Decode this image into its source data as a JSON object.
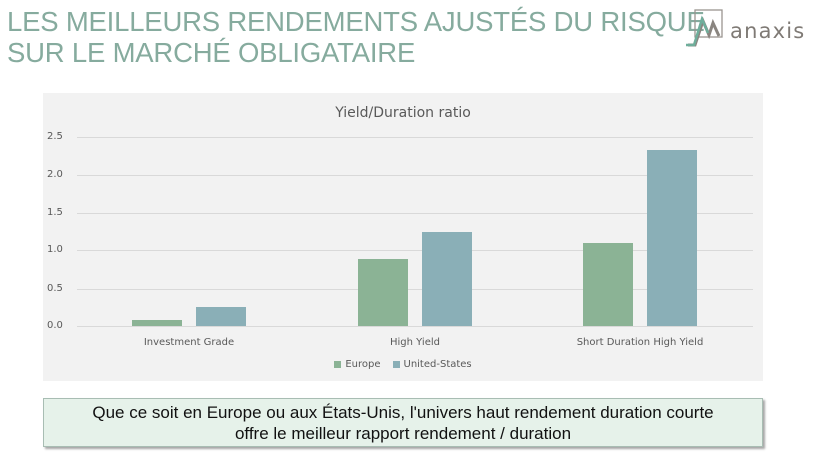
{
  "header": {
    "title_line1": "LES MEILLEURS RENDEMENTS AJUSTÉS DU RISQUE",
    "title_line2": "SUR LE MARCHÉ OBLIGATAIRE"
  },
  "logo": {
    "icon": "anaxis-mountain-logo-icon",
    "text": "anaxis"
  },
  "colors": {
    "title": "#86ab9e",
    "europe": "#8bb395",
    "united_states": "#8aafb7",
    "chart_background": "#f2f2f2",
    "callout_background": "#e6f2ea"
  },
  "chart_data": {
    "type": "bar",
    "title": "Yield/Duration ratio",
    "categories": [
      "Investment Grade",
      "High Yield",
      "Short Duration High Yield"
    ],
    "series": [
      {
        "name": "Europe",
        "color": "#8bb395",
        "values": [
          0.08,
          0.88,
          1.1
        ]
      },
      {
        "name": "United-States",
        "color": "#8aafb7",
        "values": [
          0.25,
          1.24,
          2.33
        ]
      }
    ],
    "xlabel": "",
    "ylabel": "",
    "ylim": [
      0,
      2.5
    ],
    "yticks": [
      "0.0",
      "0.5",
      "1.0",
      "1.5",
      "2.0",
      "2.5"
    ],
    "grid": true,
    "legend_position": "bottom"
  },
  "callout": {
    "line1": "Que ce soit en Europe ou aux États-Unis, l'univers haut rendement duration courte",
    "line2": "offre le meilleur rapport rendement / duration"
  }
}
